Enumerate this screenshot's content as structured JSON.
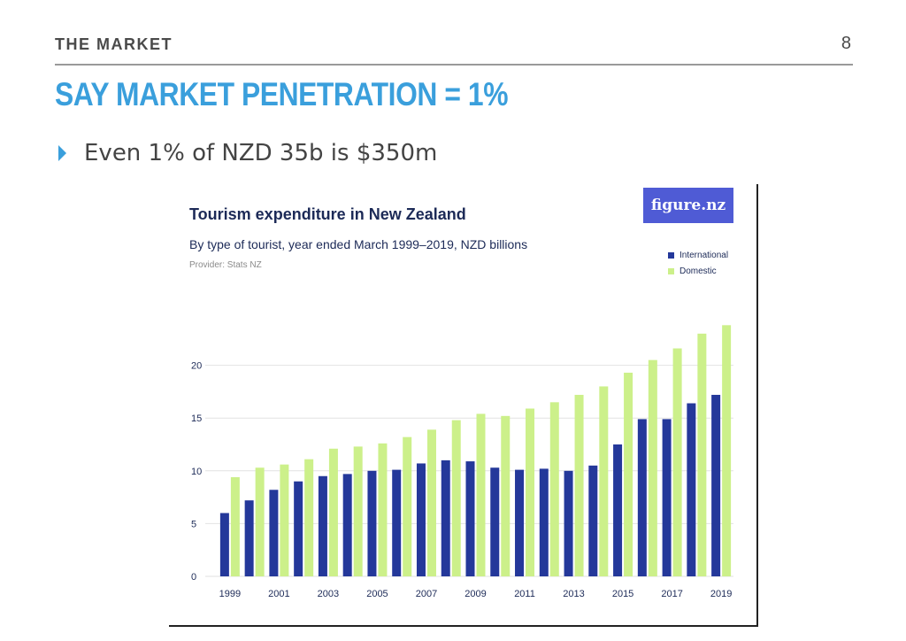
{
  "slide": {
    "section": "THE MARKET",
    "page_number": "8",
    "title": "SAY MARKET PENETRATION = 1%",
    "bullet": "Even 1% of NZD 35b is $350m",
    "colors": {
      "title": "#3a9fdc",
      "bullet": "#3a9fdc",
      "text": "#444444"
    }
  },
  "figure": {
    "logo": "figure.nz",
    "provider": "Provider: Stats NZ"
  },
  "chart_data": {
    "type": "bar",
    "title": "Tourism expenditure in New Zealand",
    "subtitle": "By type of tourist, year ended March 1999–2019, NZD billions",
    "categories": [
      "1999",
      "2000",
      "2001",
      "2002",
      "2003",
      "2004",
      "2005",
      "2006",
      "2007",
      "2008",
      "2009",
      "2010",
      "2011",
      "2012",
      "2013",
      "2014",
      "2015",
      "2016",
      "2017",
      "2018",
      "2019"
    ],
    "tick_labels": [
      "1999",
      "2001",
      "2003",
      "2005",
      "2007",
      "2009",
      "2011",
      "2013",
      "2015",
      "2017",
      "2019"
    ],
    "series": [
      {
        "name": "International",
        "color": "#24389a",
        "values": [
          6.0,
          7.2,
          8.2,
          9.0,
          9.5,
          9.7,
          10.0,
          10.1,
          10.7,
          11.0,
          10.9,
          10.3,
          10.1,
          10.2,
          10.0,
          10.5,
          12.5,
          14.9,
          14.9,
          16.4,
          17.2
        ]
      },
      {
        "name": "Domestic",
        "color": "#ccf08a",
        "values": [
          9.4,
          10.3,
          10.6,
          11.1,
          12.1,
          12.3,
          12.6,
          13.2,
          13.9,
          14.8,
          15.4,
          15.2,
          15.9,
          16.5,
          17.2,
          18.0,
          19.3,
          20.5,
          21.6,
          23.0,
          23.8
        ]
      }
    ],
    "yticks": [
      "0",
      "5",
      "10",
      "15",
      "20"
    ],
    "ylim": [
      0,
      25
    ],
    "grid": true,
    "legend": "top-right"
  }
}
